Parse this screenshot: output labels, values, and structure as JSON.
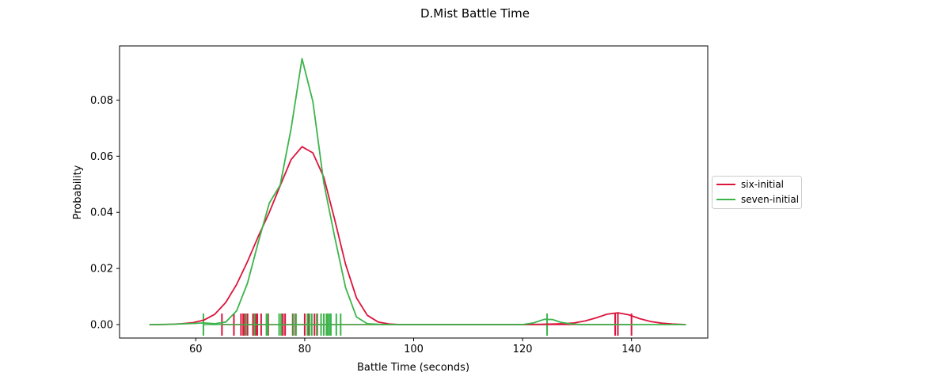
{
  "chart_data": {
    "type": "line",
    "title": "D.Mist Battle Time",
    "xlabel": "Battle Time (seconds)",
    "ylabel": "Probability",
    "xlim": [
      46,
      154
    ],
    "ylim": [
      -0.0048,
      0.0993
    ],
    "x_ticks": [
      60,
      80,
      100,
      120,
      140
    ],
    "x_tick_labels": [
      "60",
      "80",
      "100",
      "120",
      "140"
    ],
    "y_ticks": [
      0.0,
      0.02,
      0.04,
      0.06,
      0.08
    ],
    "y_tick_labels": [
      "0.00",
      "0.02",
      "0.04",
      "0.06",
      "0.08"
    ],
    "grid": false,
    "legend_position": "outside right, center",
    "series": [
      {
        "name": "six-initial",
        "color": "#dc143c",
        "x": [
          51.5,
          53.5,
          55.5,
          57.5,
          59.5,
          61.5,
          63.5,
          65.5,
          67.5,
          69.5,
          71.5,
          73.5,
          75.5,
          77.5,
          79.5,
          81.5,
          83.5,
          85.5,
          87.5,
          89.5,
          91.5,
          93.5,
          95.5,
          97.5,
          100,
          105,
          110,
          115,
          120,
          123.5,
          125.5,
          127.5,
          129.5,
          131.5,
          133.5,
          135.5,
          137.5,
          139.5,
          141.5,
          143.5,
          145.5,
          147.5,
          150
        ],
        "y": [
          0.0,
          0.0,
          0.0001,
          0.0003,
          0.0007,
          0.0016,
          0.0037,
          0.0079,
          0.0143,
          0.0225,
          0.0315,
          0.04,
          0.0495,
          0.0588,
          0.0634,
          0.0612,
          0.0525,
          0.0375,
          0.0215,
          0.0095,
          0.0033,
          0.0009,
          0.0002,
          0.0,
          0.0,
          0.0,
          0.0,
          0.0,
          0.0,
          0.0001,
          0.0002,
          0.0003,
          0.0006,
          0.0013,
          0.0024,
          0.0037,
          0.0042,
          0.0035,
          0.0021,
          0.0011,
          0.0005,
          0.0002,
          0.0
        ]
      },
      {
        "name": "seven-initial",
        "color": "#3cb44b",
        "x": [
          51.5,
          55.5,
          59.5,
          61.5,
          63.5,
          65.5,
          67.5,
          69.5,
          71.5,
          73.5,
          75.5,
          77.5,
          79.5,
          81.5,
          83.5,
          85.5,
          87.5,
          89.5,
          91.5,
          93.5,
          95.5,
          100,
          110,
          120,
          122,
          124,
          125.5,
          127,
          129,
          131,
          135,
          140,
          145,
          150
        ],
        "y": [
          0.0,
          0.0001,
          0.0004,
          0.0006,
          0.0003,
          0.0009,
          0.0049,
          0.0148,
          0.0295,
          0.0433,
          0.0497,
          0.0698,
          0.0948,
          0.0795,
          0.0505,
          0.0313,
          0.0132,
          0.0027,
          0.0003,
          0.0001,
          0.0,
          0.0,
          0.0,
          0.0,
          0.0006,
          0.0019,
          0.0018,
          0.0008,
          0.0002,
          0.0,
          0.0,
          0.0,
          0.0,
          0.0
        ]
      }
    ],
    "rug_marks": [
      {
        "name": "six-initial",
        "color": "#dc143c",
        "values": [
          64.8,
          67.0,
          68.3,
          68.7,
          69.0,
          69.5,
          70.5,
          71.0,
          71.3,
          72.0,
          73.0,
          73.3,
          75.7,
          76.0,
          76.4,
          77.8,
          78.3,
          80.0,
          80.7,
          81.8,
          82.3,
          83.5,
          84.0,
          137.0,
          137.5,
          140.0
        ]
      },
      {
        "name": "seven-initial",
        "color": "#3cb44b",
        "values": [
          61.4,
          69.2,
          70.8,
          73.0,
          73.2,
          75.3,
          75.7,
          77.9,
          78.4,
          80.5,
          80.9,
          81.3,
          82.2,
          83.0,
          83.5,
          84.0,
          84.2,
          84.5,
          84.8,
          85.8,
          86.6,
          124.5
        ]
      }
    ]
  }
}
